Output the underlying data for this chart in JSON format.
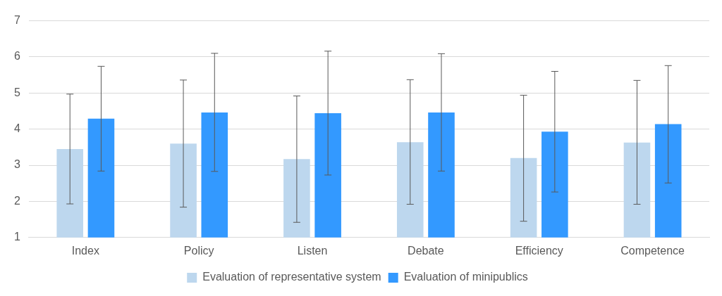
{
  "chart_data": {
    "type": "bar",
    "categories": [
      "Index",
      "Policy",
      "Listen",
      "Debate",
      "Efficiency",
      "Competence"
    ],
    "series": [
      {
        "name": "Evaluation of representative system",
        "color": "#bdd7ee",
        "values": [
          3.45,
          3.6,
          3.17,
          3.64,
          3.2,
          3.63
        ],
        "errors": [
          [
            1.93,
            4.97
          ],
          [
            1.84,
            5.36
          ],
          [
            1.42,
            4.92
          ],
          [
            1.92,
            5.37
          ],
          [
            1.45,
            4.94
          ],
          [
            1.92,
            5.35
          ]
        ]
      },
      {
        "name": "Evaluation of minipublics",
        "color": "#3399ff",
        "values": [
          4.29,
          4.46,
          4.44,
          4.46,
          3.93,
          4.14
        ],
        "errors": [
          [
            2.84,
            5.74
          ],
          [
            2.83,
            6.1
          ],
          [
            2.73,
            6.16
          ],
          [
            2.84,
            6.09
          ],
          [
            2.26,
            5.6
          ],
          [
            2.51,
            5.76
          ]
        ]
      }
    ],
    "ylim": [
      1,
      7
    ],
    "yticks": [
      1,
      2,
      3,
      4,
      5,
      6,
      7
    ],
    "grid": "y",
    "legend": "bottom"
  }
}
